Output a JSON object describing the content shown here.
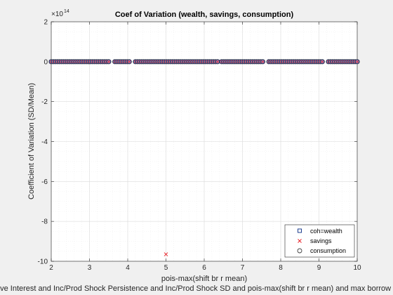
{
  "chart_data": {
    "type": "scatter",
    "title": "Coef of Variation (wealth, savings, consumption)",
    "xlabel": "pois-max(shift br r mean)",
    "ylabel": "Coefficient of Variation (SD/Mean)",
    "footer_label": "ave Interest and Inc/Prod Shock Persistence and Inc/Prod Shock SD and pois-max(shift br r mean) and max borrow",
    "exponent_label": "×10",
    "exponent_power": "14",
    "xlim": [
      2,
      10
    ],
    "ylim": [
      -10,
      2
    ],
    "y_scale": 100000000000000.0,
    "x_ticks": [
      "2",
      "3",
      "4",
      "5",
      "6",
      "7",
      "8",
      "9",
      "10"
    ],
    "y_ticks": [
      "2",
      "0",
      "-2",
      "-4",
      "-6",
      "-8",
      "-10"
    ],
    "x_tick_values": [
      2,
      3,
      4,
      5,
      6,
      7,
      8,
      9,
      10
    ],
    "y_tick_values": [
      2,
      0,
      -2,
      -4,
      -6,
      -8,
      -10
    ],
    "grid": true,
    "minor_grid": true,
    "legend_position": "bottom-right",
    "series": [
      {
        "name": "coh=wealth",
        "marker": "square",
        "color": "#1f3f8f",
        "x_range": [
          2,
          10
        ],
        "y_value": 0,
        "n_points": 150
      },
      {
        "name": "savings",
        "marker": "x",
        "color": "#e8262c",
        "x_range": [
          2,
          10
        ],
        "y_value": 0,
        "n_points": 150,
        "outlier": {
          "x": 5.0,
          "y": -9.65
        }
      },
      {
        "name": "consumption",
        "marker": "circle",
        "color": "#404040",
        "fill": "#9a9ad0",
        "x_range": [
          2,
          10
        ],
        "y_value": 0,
        "n_points": 150
      }
    ],
    "x_gaps": [
      [
        3.55,
        3.65
      ],
      [
        4.05,
        4.15
      ],
      [
        6.35,
        6.45
      ],
      [
        7.55,
        7.65
      ],
      [
        9.1,
        9.2
      ]
    ]
  }
}
